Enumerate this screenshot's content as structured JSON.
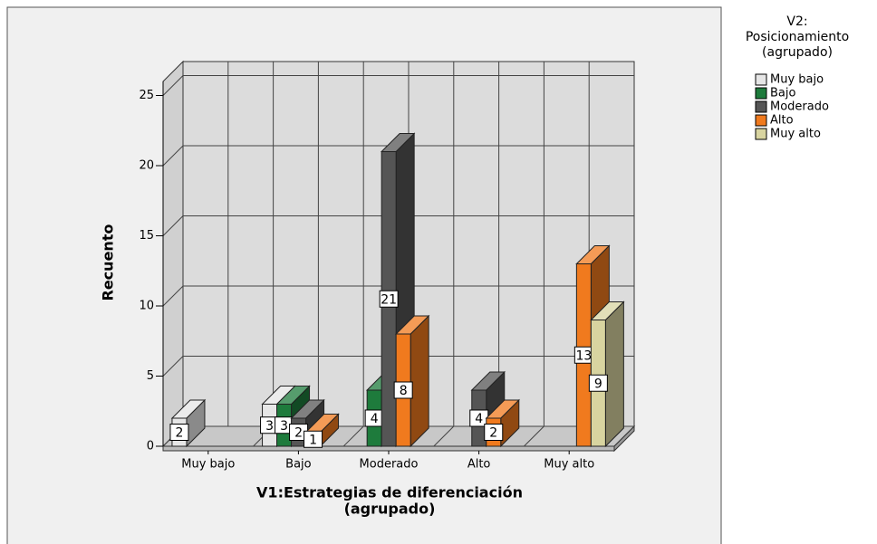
{
  "chart_data": {
    "type": "bar3d",
    "y_label": "Recuento",
    "x_label": [
      "V1:Estrategias de diferenciación",
      "(agrupado)"
    ],
    "legend_title": [
      "V2:",
      "Posicionamiento",
      "(agrupado)"
    ],
    "categories": [
      "Muy bajo",
      "Bajo",
      "Moderado",
      "Alto",
      "Muy alto"
    ],
    "series": [
      {
        "name": "Muy bajo",
        "color": "#e6e6e6",
        "values": [
          2,
          3,
          null,
          null,
          null
        ]
      },
      {
        "name": "Bajo",
        "color": "#1e7b3c",
        "values": [
          null,
          3,
          4,
          null,
          null
        ]
      },
      {
        "name": "Moderado",
        "color": "#555555",
        "values": [
          null,
          2,
          21,
          4,
          null
        ]
      },
      {
        "name": "Alto",
        "color": "#f07a1e",
        "values": [
          null,
          1,
          8,
          2,
          13
        ]
      },
      {
        "name": "Muy alto",
        "color": "#d8d4a0",
        "values": [
          null,
          null,
          null,
          null,
          9
        ]
      }
    ],
    "ylim": [
      0,
      26
    ],
    "yticks": [
      0,
      5,
      10,
      15,
      20,
      25
    ],
    "grid": true,
    "legend": "right"
  }
}
